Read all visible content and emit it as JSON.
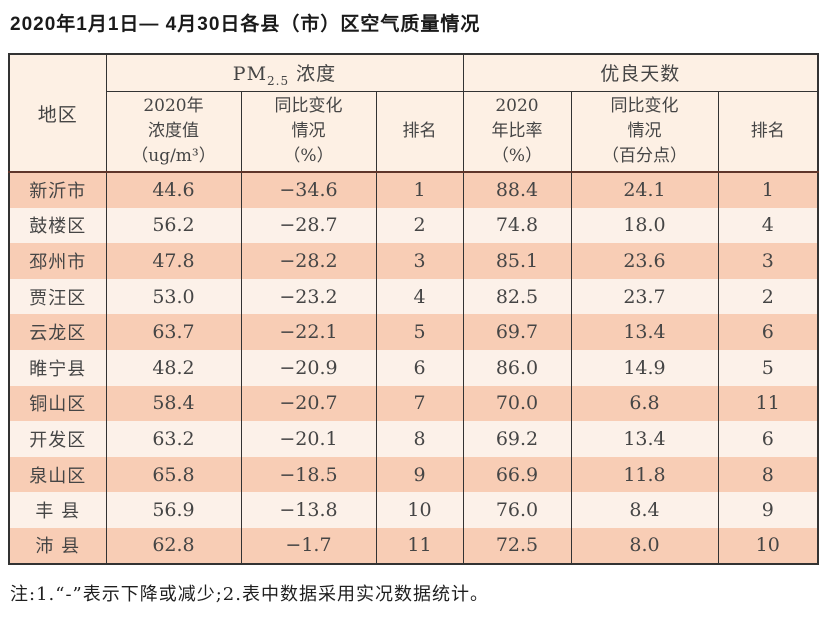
{
  "page": {
    "title": "2020年1月1日— 4月30日各县（市）区空气质量情况",
    "footnote": "注:1.“-”表示下降或减少;2.表中数据采用实况数据统计。"
  },
  "colors": {
    "row_stripe_dark": "#f8cdb5",
    "row_stripe_light": "#fcf1e9",
    "header_background": "#fdf0e4",
    "table_border": "#333333",
    "header_separator": "#5f352a"
  },
  "table": {
    "header": {
      "region": "地区",
      "pm_group": {
        "prefix": "PM",
        "sub": "2.5",
        "suffix": " 浓度"
      },
      "good_group": "优良天数",
      "sub_headers": {
        "pm_value": "2020年\n浓度值\n（ug/m³）",
        "pm_change": "同比变化\n情况\n（%）",
        "pm_rank": "排名",
        "good_rate": "2020\n年比率\n（%）",
        "good_change": "同比变化\n情况\n（百分点）",
        "good_rank": "排名"
      }
    },
    "rows": [
      {
        "region": "新沂市",
        "pm_value": "44.6",
        "pm_change": "−34.6",
        "pm_rank": "1",
        "good_rate": "88.4",
        "good_change": "24.1",
        "good_rank": "1"
      },
      {
        "region": "鼓楼区",
        "pm_value": "56.2",
        "pm_change": "−28.7",
        "pm_rank": "2",
        "good_rate": "74.8",
        "good_change": "18.0",
        "good_rank": "4"
      },
      {
        "region": "邳州市",
        "pm_value": "47.8",
        "pm_change": "−28.2",
        "pm_rank": "3",
        "good_rate": "85.1",
        "good_change": "23.6",
        "good_rank": "3"
      },
      {
        "region": "贾汪区",
        "pm_value": "53.0",
        "pm_change": "−23.2",
        "pm_rank": "4",
        "good_rate": "82.5",
        "good_change": "23.7",
        "good_rank": "2"
      },
      {
        "region": "云龙区",
        "pm_value": "63.7",
        "pm_change": "−22.1",
        "pm_rank": "5",
        "good_rate": "69.7",
        "good_change": "13.4",
        "good_rank": "6"
      },
      {
        "region": "睢宁县",
        "pm_value": "48.2",
        "pm_change": "−20.9",
        "pm_rank": "6",
        "good_rate": "86.0",
        "good_change": "14.9",
        "good_rank": "5"
      },
      {
        "region": "铜山区",
        "pm_value": "58.4",
        "pm_change": "−20.7",
        "pm_rank": "7",
        "good_rate": "70.0",
        "good_change": "6.8",
        "good_rank": "11"
      },
      {
        "region": "开发区",
        "pm_value": "63.2",
        "pm_change": "−20.1",
        "pm_rank": "8",
        "good_rate": "69.2",
        "good_change": "13.4",
        "good_rank": "6"
      },
      {
        "region": "泉山区",
        "pm_value": "65.8",
        "pm_change": "−18.5",
        "pm_rank": "9",
        "good_rate": "66.9",
        "good_change": "11.8",
        "good_rank": "8"
      },
      {
        "region": "丰 县",
        "pm_value": "56.9",
        "pm_change": "−13.8",
        "pm_rank": "10",
        "good_rate": "76.0",
        "good_change": "8.4",
        "good_rank": "9"
      },
      {
        "region": "沛 县",
        "pm_value": "62.8",
        "pm_change": "−1.7",
        "pm_rank": "11",
        "good_rate": "72.5",
        "good_change": "8.0",
        "good_rank": "10"
      }
    ]
  }
}
